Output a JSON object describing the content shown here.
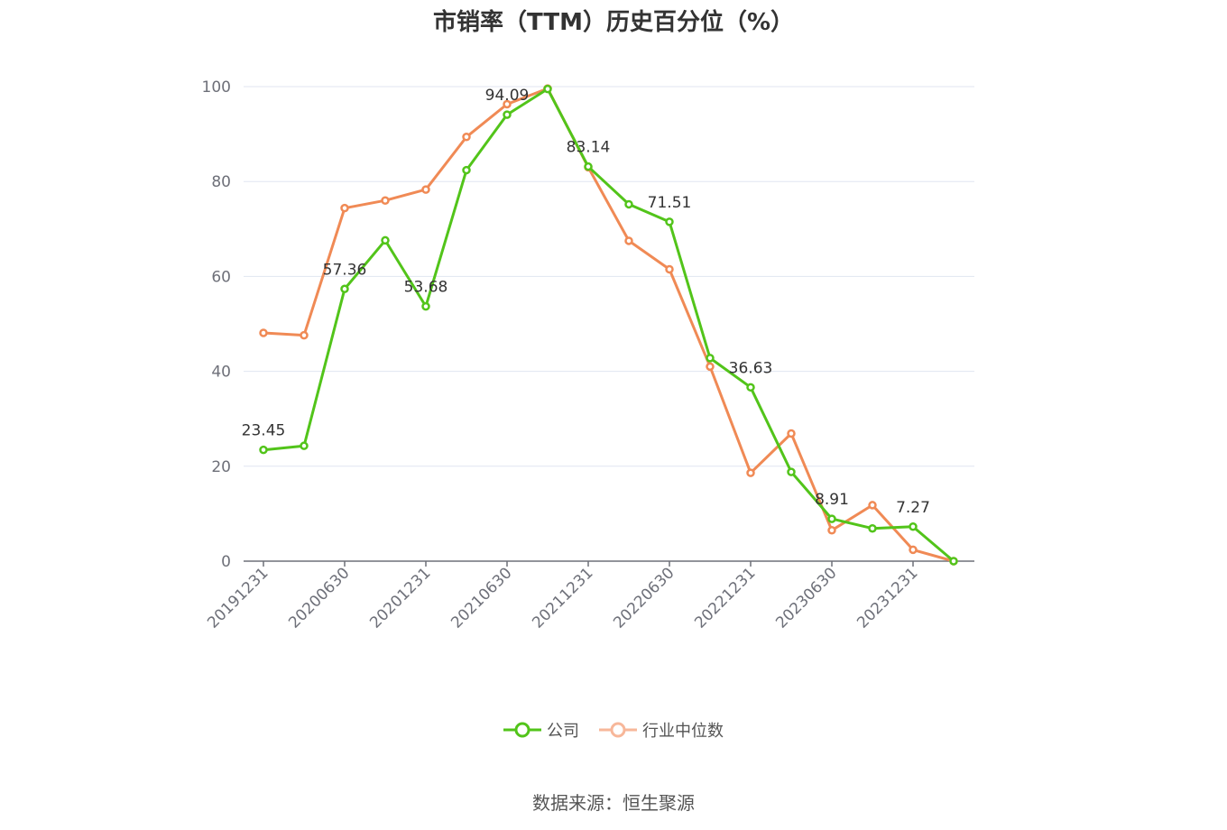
{
  "chart_data": {
    "type": "line",
    "title": "市销率（TTM）历史百分位（%）",
    "source": "数据来源：恒生聚源",
    "x": [
      "20191231",
      "20200331",
      "20200630",
      "20200930",
      "20201231",
      "20210331",
      "20210630",
      "20210930",
      "20211231",
      "20220331",
      "20220630",
      "20220930",
      "20221231",
      "20230331",
      "20230630",
      "20230930",
      "20231231",
      "20240331"
    ],
    "xticks": [
      "20191231",
      "20200630",
      "20201231",
      "20210630",
      "20211231",
      "20220630",
      "20221231",
      "20230630",
      "20231231"
    ],
    "ylim": [
      0,
      100
    ],
    "yticks": [
      0,
      20,
      40,
      60,
      80,
      100
    ],
    "grid": true,
    "legend_position": "bottom",
    "series": [
      {
        "name": "公司",
        "color": "#52c41a",
        "values": [
          23.45,
          24.3,
          57.36,
          67.6,
          53.68,
          82.4,
          94.09,
          99.5,
          83.14,
          75.2,
          71.51,
          42.8,
          36.63,
          18.8,
          8.91,
          6.9,
          7.27,
          0.0
        ],
        "labels": {
          "0": "23.45",
          "2": "57.36",
          "4": "53.68",
          "6": "94.09",
          "8": "83.14",
          "10": "71.51",
          "12": "36.63",
          "14": "8.91",
          "16": "7.27"
        }
      },
      {
        "name": "行业中位数",
        "color": "#f08a55",
        "values": [
          48.1,
          47.6,
          74.4,
          76.0,
          78.3,
          89.4,
          96.3,
          99.6,
          83.0,
          67.5,
          61.5,
          41.0,
          18.6,
          26.9,
          6.5,
          11.8,
          2.4,
          0.0
        ]
      }
    ]
  }
}
